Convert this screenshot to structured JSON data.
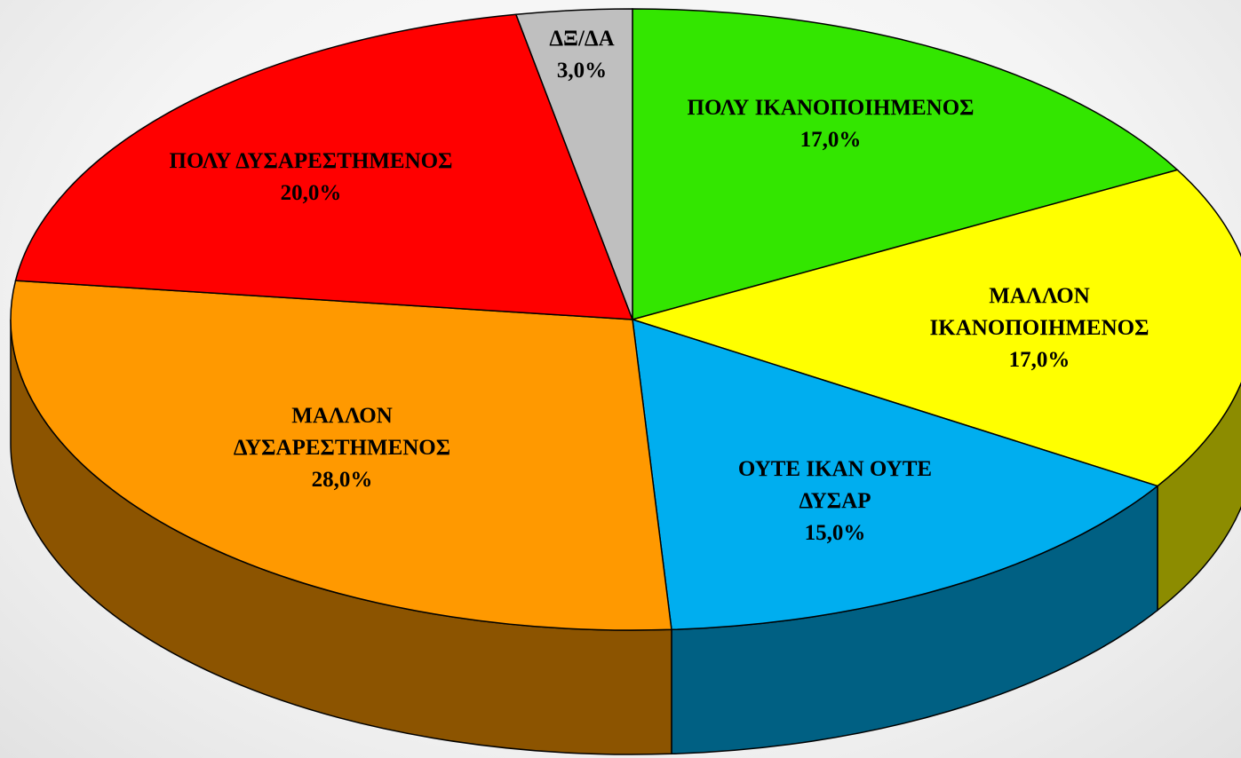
{
  "chart_data": {
    "type": "pie",
    "categories": [
      "ΠΟΛΥ ΙΚΑΝΟΠΟΙΗΜΕΝΟΣ",
      "ΜΑΛΛΟΝ ΙΚΑΝΟΠΟΙΗΜΕΝΟΣ",
      "ΟΥΤΕ ΙΚΑΝ ΟΥΤΕ ΔΥΣΑΡ",
      "ΜΑΛΛΟΝ ΔΥΣΑΡΕΣΤΗΜΕΝΟΣ",
      "ΠΟΛΥ ΔΥΣΑΡΕΣΤΗΜΕΝΟΣ",
      "ΔΞ/ΔΑ"
    ],
    "values": [
      17,
      17,
      15,
      28,
      20,
      3
    ],
    "value_labels": [
      "17,0%",
      "17,0%",
      "15,0%",
      "28,0%",
      "20,0%",
      "3,0%"
    ],
    "colors": [
      "#33e600",
      "#ffff00",
      "#00aeef",
      "#ff9900",
      "#ff0000",
      "#bfbfbf"
    ],
    "three_d": true
  }
}
